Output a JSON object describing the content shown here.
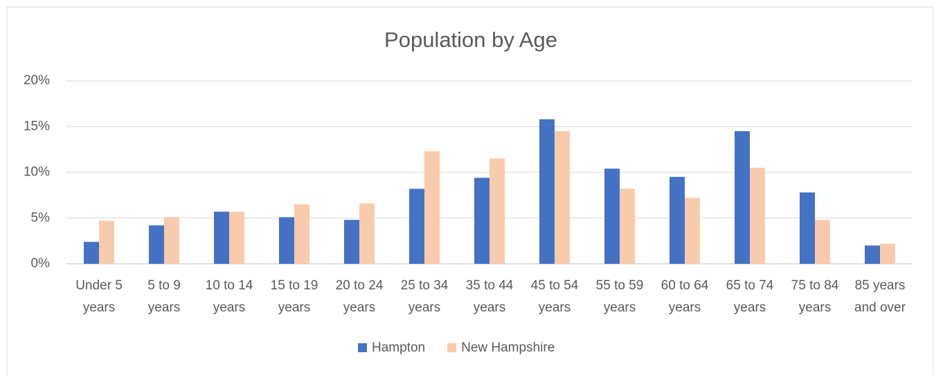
{
  "chart_data": {
    "type": "bar",
    "title": "Population by Age",
    "categories": [
      "Under 5 years",
      "5 to 9 years",
      "10 to 14 years",
      "15 to 19 years",
      "20 to 24 years",
      "25 to 34 years",
      "35 to 44 years",
      "45 to 54 years",
      "55 to 59 years",
      "60 to 64 years",
      "65 to 74 years",
      "75 to 84 years",
      "85 years and over"
    ],
    "series": [
      {
        "name": "Hampton",
        "color": "#4472c4",
        "values": [
          2.4,
          4.2,
          5.7,
          5.1,
          4.8,
          8.2,
          9.4,
          15.8,
          10.4,
          9.5,
          14.5,
          7.8,
          2.0
        ]
      },
      {
        "name": "New Hampshire",
        "color": "#f8cbad",
        "values": [
          4.7,
          5.1,
          5.7,
          6.5,
          6.6,
          12.3,
          11.5,
          14.5,
          8.2,
          7.2,
          10.5,
          4.8,
          2.2
        ]
      }
    ],
    "ylim": [
      0,
      20
    ],
    "yticks": [
      {
        "value": 0,
        "label": "0%"
      },
      {
        "value": 5,
        "label": "5%"
      },
      {
        "value": 10,
        "label": "10%"
      },
      {
        "value": 15,
        "label": "15%"
      },
      {
        "value": 20,
        "label": "20%"
      }
    ],
    "grid": true,
    "legend": "bottom"
  }
}
